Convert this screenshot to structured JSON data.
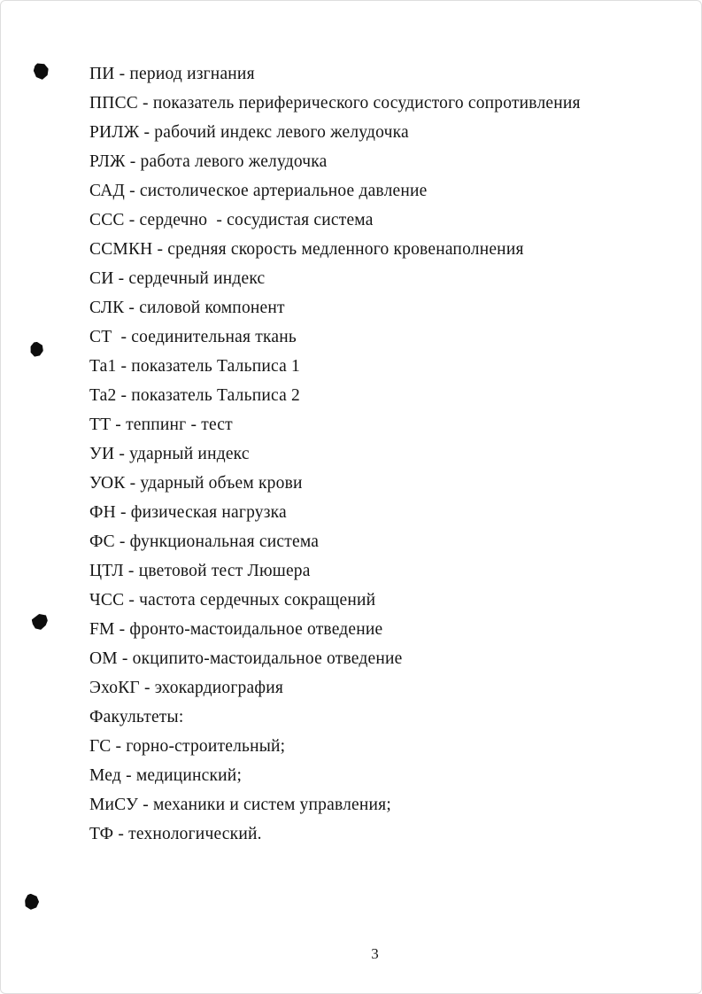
{
  "document": {
    "lines": [
      "ПИ - период изгнания",
      "ППСС - показатель периферического сосудистого сопротивления",
      "РИЛЖ - рабочий индекс левого желудочка",
      "РЛЖ - работа левого желудочка",
      "САД - систолическое артериальное давление",
      "ССС - сердечно  - сосудистая система",
      "ССМКН - средняя скорость медленного кровенаполнения",
      "СИ - сердечный индекс",
      "СЛК - силовой компонент",
      "СТ  - соединительная ткань",
      "Та1 - показатель Тальписа 1",
      "Та2 - показатель Тальписа 2",
      "ТТ - теппинг - тест",
      "УИ - ударный индекс",
      "УОК - ударный объем крови",
      "ФН - физическая нагрузка",
      "ФС - функциональная система",
      "ЦТЛ - цветовой тест Люшера",
      "ЧСС - частота сердечных сокращений",
      "FM - фронто-мастоидальное отведение",
      "ОМ - окципито-мастоидальное отведение",
      "ЭхоКГ - эхокардиография",
      "Факультеты:",
      "ГС - горно-строительный;",
      "Мед - медицинский;",
      "МиСУ - механики и систем управления;",
      "ТФ - технологический."
    ],
    "page_number": "3",
    "ink_color": "#0d0d0d"
  }
}
